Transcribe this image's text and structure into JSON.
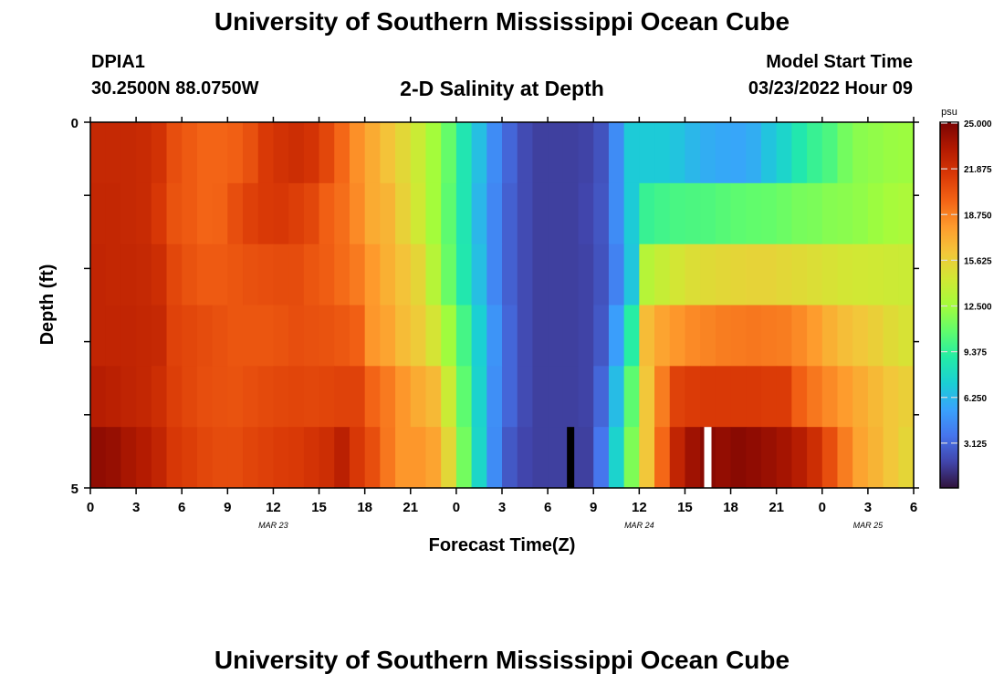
{
  "header": {
    "title": "University of Southern Mississippi Ocean Cube",
    "station_id": "DPIA1",
    "coords": "30.2500N  88.0750W",
    "chart_title": "2-D Salinity at Depth",
    "model_start_label": "Model Start Time",
    "model_start_value": "03/23/2022 Hour 09"
  },
  "footer": {
    "title": "University of Southern Mississippi Ocean Cube"
  },
  "chart_data": {
    "type": "heatmap",
    "title": "2-D Salinity at Depth",
    "xlabel": "Forecast Time(Z)",
    "ylabel": "Depth (ft)",
    "x_tick_labels": [
      "0",
      "3",
      "6",
      "9",
      "12",
      "15",
      "18",
      "21",
      "0",
      "3",
      "6",
      "9",
      "12",
      "15",
      "18",
      "21",
      "0",
      "3",
      "6"
    ],
    "x_date_labels": [
      {
        "label": "MAR 23",
        "at_hour": 12
      },
      {
        "label": "MAR 24",
        "at_hour": 36
      },
      {
        "label": "MAR 25",
        "at_hour": 51
      }
    ],
    "x_range_hours": [
      0,
      54
    ],
    "y_tick_labels": [
      "0",
      "5"
    ],
    "y_range": [
      0,
      5
    ],
    "units": "psu",
    "colorbar_ticks": [
      "3.125",
      "6.250",
      "9.375",
      "12.500",
      "15.625",
      "18.750",
      "21.875",
      "25.000"
    ],
    "colorbar_range": [
      0,
      25
    ],
    "colormap": [
      "#30123b",
      "#4145ab",
      "#4675ed",
      "#39a2fc",
      "#1bcfd4",
      "#24eca6",
      "#61fc6c",
      "#a4fc3b",
      "#d1e834",
      "#f3c63a",
      "#fe9b2d",
      "#f36315",
      "#d93806",
      "#b11901",
      "#7a0403"
    ],
    "masked_cells": [
      {
        "hour": 31.5,
        "depth_row": 5,
        "color": "#000000"
      },
      {
        "hour": 40.5,
        "depth_row": 5,
        "color": "#ffffff"
      }
    ],
    "depth_rows": 6,
    "time_columns": 54,
    "values": [
      [
        22.3,
        22.3,
        22.3,
        22.2,
        21.8,
        20.5,
        20.0,
        19.6,
        19.6,
        19.8,
        20.4,
        21.4,
        21.8,
        22.0,
        21.7,
        20.8,
        19.5,
        18.2,
        17.2,
        16.2,
        15.2,
        14.0,
        12.5,
        10.8,
        8.5,
        6.5,
        4.5,
        3.0,
        2.0,
        1.6,
        1.6,
        1.6,
        1.7,
        2.3,
        4.5,
        7.0,
        7.0,
        7.0,
        6.7,
        6.2,
        5.8,
        5.6,
        5.5,
        5.8,
        6.7,
        7.5,
        8.6,
        9.5,
        10.1,
        11.2,
        11.8,
        12.0,
        12.2,
        12.3
      ],
      [
        22.4,
        22.4,
        22.3,
        22.2,
        21.5,
        20.3,
        20.0,
        19.6,
        19.7,
        20.5,
        21.1,
        21.4,
        21.5,
        21.2,
        20.8,
        19.8,
        19.3,
        18.4,
        17.2,
        16.8,
        15.5,
        14.2,
        12.5,
        10.6,
        8.5,
        6.2,
        4.3,
        2.8,
        2.0,
        1.6,
        1.6,
        1.6,
        1.8,
        2.4,
        4.5,
        7.0,
        9.5,
        9.8,
        10.0,
        10.1,
        10.2,
        10.4,
        10.6,
        10.7,
        10.8,
        11.0,
        11.3,
        11.4,
        11.7,
        11.8,
        12.0,
        12.3,
        12.6,
        12.8
      ],
      [
        22.5,
        22.4,
        22.4,
        22.3,
        22.0,
        20.8,
        20.3,
        20.0,
        20.0,
        20.2,
        20.4,
        20.5,
        20.6,
        20.6,
        20.2,
        19.9,
        19.4,
        18.9,
        17.9,
        17.0,
        16.2,
        15.3,
        13.2,
        10.9,
        8.6,
        6.5,
        4.3,
        2.8,
        2.0,
        1.6,
        1.6,
        1.6,
        1.7,
        2.3,
        4.1,
        6.8,
        13.2,
        13.8,
        14.4,
        14.8,
        15.0,
        15.2,
        15.3,
        15.4,
        15.4,
        15.2,
        15.0,
        14.8,
        14.6,
        14.4,
        14.3,
        14.2,
        14.1,
        14.0
      ],
      [
        22.5,
        22.5,
        22.5,
        22.4,
        22.3,
        21.0,
        20.8,
        20.6,
        20.4,
        20.2,
        20.2,
        20.2,
        20.3,
        20.5,
        20.4,
        20.3,
        20.1,
        19.8,
        18.0,
        17.5,
        16.5,
        15.8,
        14.5,
        12.4,
        9.9,
        7.2,
        4.8,
        3.0,
        2.0,
        1.6,
        1.6,
        1.6,
        1.7,
        2.5,
        5.2,
        9.0,
        16.5,
        17.5,
        18.0,
        18.4,
        18.6,
        18.8,
        18.9,
        19.0,
        18.9,
        18.8,
        18.4,
        17.8,
        17.0,
        16.4,
        16.0,
        15.6,
        15.0,
        14.6
      ],
      [
        23.0,
        22.8,
        22.6,
        22.4,
        22.0,
        21.2,
        20.8,
        20.5,
        20.4,
        20.3,
        20.5,
        20.7,
        20.8,
        20.9,
        20.8,
        20.9,
        21.0,
        21.0,
        19.6,
        18.9,
        18.0,
        17.2,
        16.6,
        14.0,
        10.6,
        7.4,
        4.6,
        3.0,
        2.0,
        1.6,
        1.6,
        1.6,
        1.7,
        3.0,
        6.4,
        10.6,
        16.0,
        18.8,
        21.0,
        21.3,
        21.4,
        21.4,
        21.4,
        21.4,
        21.3,
        21.3,
        19.8,
        19.0,
        18.4,
        17.8,
        17.2,
        16.6,
        16.0,
        15.6
      ],
      [
        24.3,
        24.1,
        23.5,
        23.1,
        22.5,
        21.5,
        21.2,
        20.8,
        20.6,
        20.6,
        20.9,
        21.1,
        21.3,
        21.4,
        21.7,
        22.0,
        22.8,
        21.5,
        20.5,
        19.0,
        18.0,
        18.0,
        17.5,
        15.2,
        11.2,
        7.6,
        4.5,
        2.5,
        1.8,
        1.6,
        1.6,
        1.6,
        1.6,
        3.6,
        7.4,
        11.5,
        16.0,
        19.5,
        22.5,
        23.8,
        24.5,
        24.2,
        24.5,
        24.3,
        24.0,
        23.6,
        23.0,
        22.0,
        20.5,
        18.8,
        17.5,
        16.8,
        16.0,
        15.3
      ]
    ]
  }
}
